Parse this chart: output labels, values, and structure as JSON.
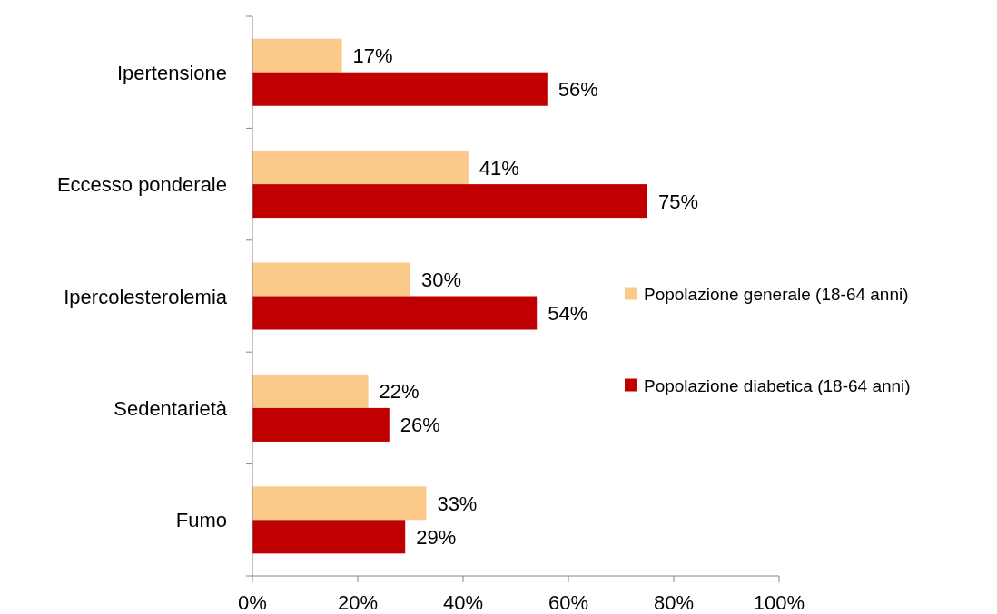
{
  "chart_data": {
    "type": "bar",
    "orientation": "horizontal",
    "categories": [
      "Ipertensione",
      "Eccesso ponderale",
      "Ipercolesterolemia",
      "Sedentarietà",
      "Fumo"
    ],
    "series": [
      {
        "name": "Popolazione generale (18-64 anni)",
        "color": "#fbc98a",
        "values": [
          17,
          41,
          30,
          22,
          33
        ],
        "value_labels": [
          "17%",
          "41%",
          "30%",
          "22%",
          "33%"
        ]
      },
      {
        "name": "Popolazione diabetica (18-64 anni)",
        "color": "#c00000",
        "values": [
          56,
          75,
          54,
          26,
          29
        ],
        "value_labels": [
          "56%",
          "75%",
          "54%",
          "26%",
          "29%"
        ]
      }
    ],
    "xlim": [
      0,
      100
    ],
    "xticks": [
      {
        "value": 0,
        "label": "0%"
      },
      {
        "value": 20,
        "label": "20%"
      },
      {
        "value": 40,
        "label": "40%"
      },
      {
        "value": 60,
        "label": "60%"
      },
      {
        "value": 80,
        "label": "80%"
      },
      {
        "value": 100,
        "label": "100%"
      }
    ],
    "legend": "right",
    "grid": false
  }
}
